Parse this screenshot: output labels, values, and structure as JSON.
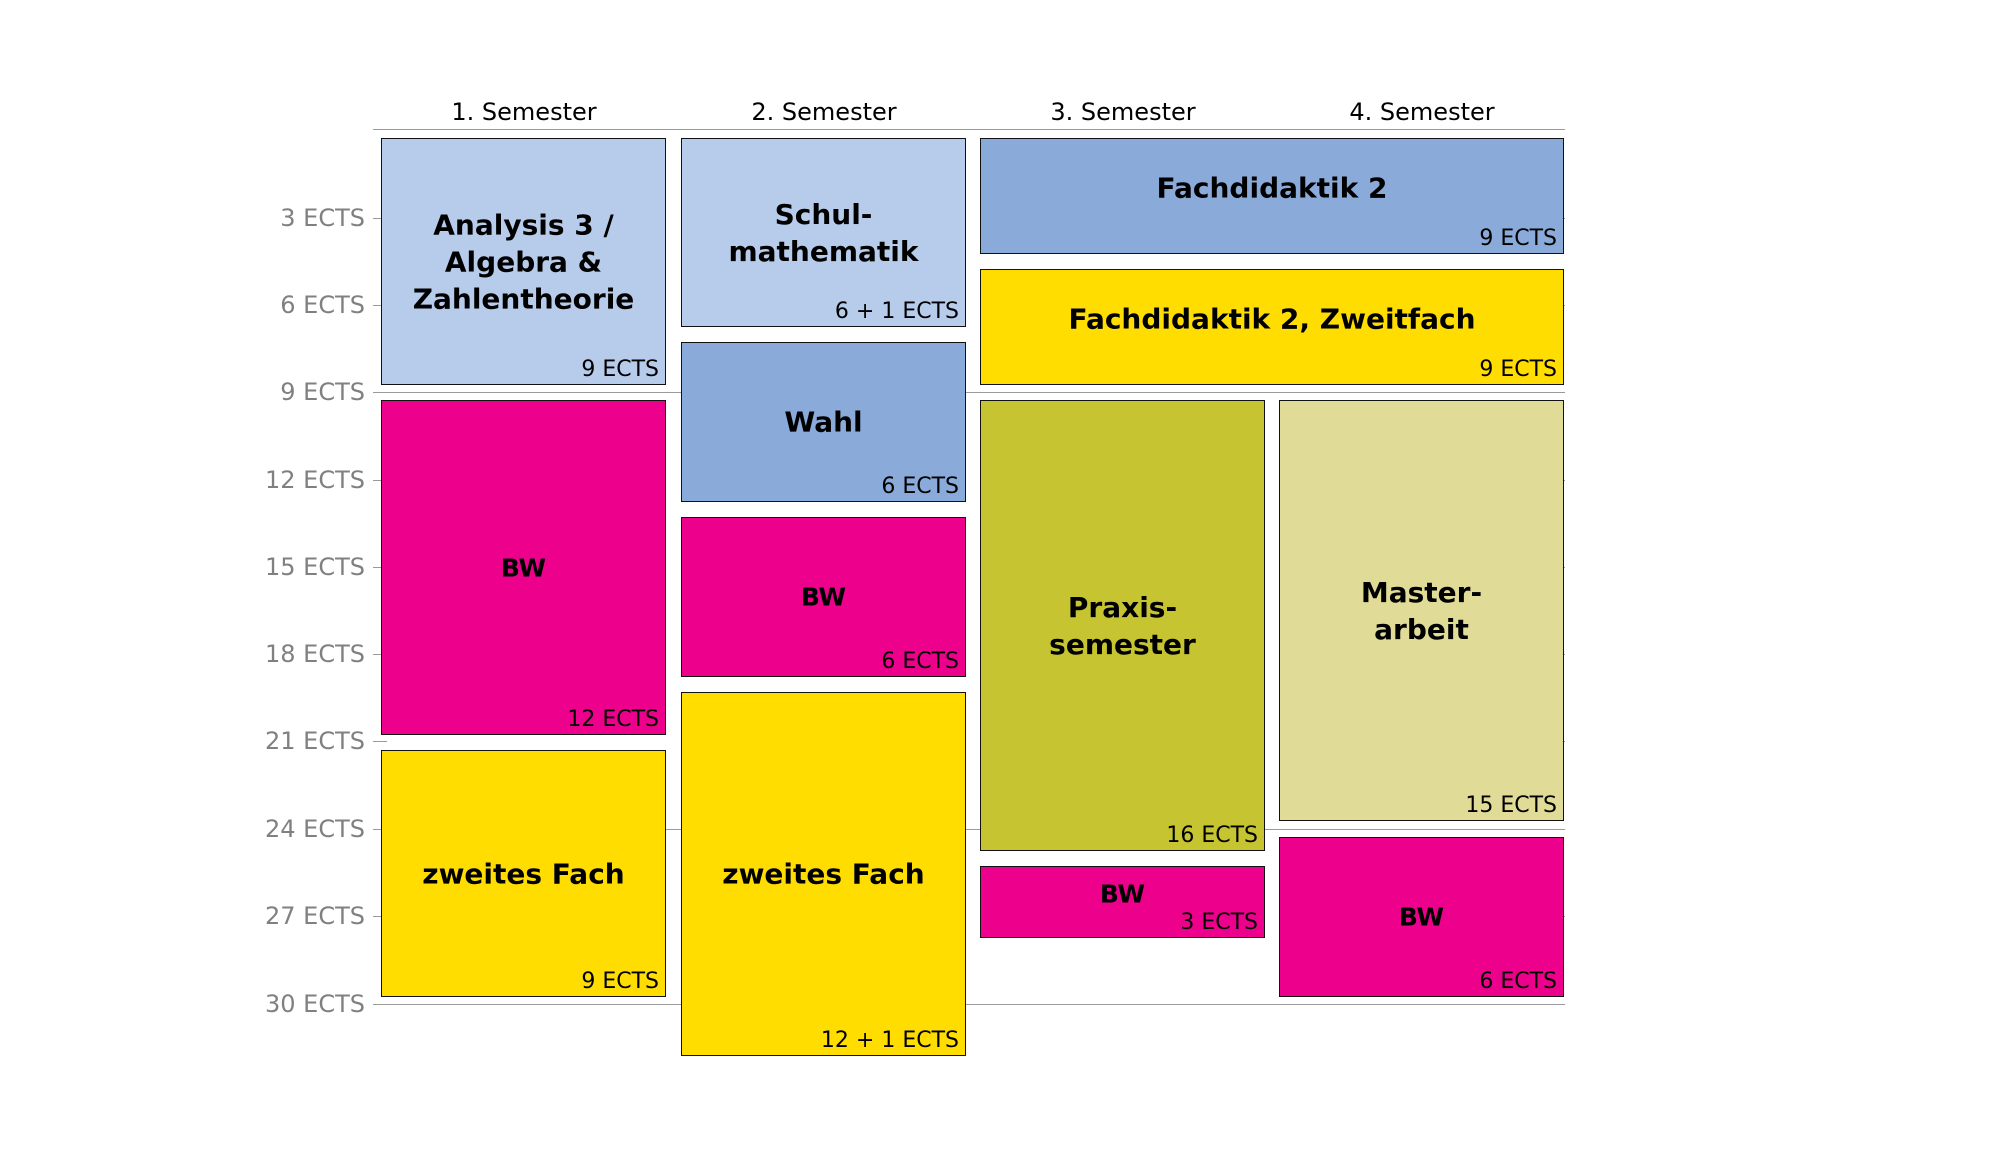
{
  "semesters": [
    "1. Semester",
    "2. Semester",
    "3. Semester",
    "4. Semester"
  ],
  "axis": {
    "labels": [
      "3 ECTS",
      "6 ECTS",
      "9 ECTS",
      "12 ECTS",
      "15 ECTS",
      "18 ECTS",
      "21 ECTS",
      "24 ECTS",
      "27 ECTS",
      "30 ECTS"
    ]
  },
  "colors": {
    "light_blue": "#b7cceb",
    "mid_blue": "#8aaad9",
    "magenta": "#ec008c",
    "yellow": "#ffdd00",
    "olive": "#c6c431",
    "khaki": "#e0db96"
  },
  "modules": [
    {
      "title": "Analysis 3 /\nAlgebra &\nZahlentheorie",
      "ects": "9 ECTS",
      "semester": 1,
      "color": "#b7cceb"
    },
    {
      "title": "BW",
      "ects": "12 ECTS",
      "semester": 1,
      "color": "#ec008c"
    },
    {
      "title": "zweites Fach",
      "ects": "9 ECTS",
      "semester": 1,
      "color": "#ffdd00"
    },
    {
      "title": "Schul-\nmathematik",
      "ects": "6 + 1 ECTS",
      "semester": 2,
      "color": "#b7cceb"
    },
    {
      "title": "Wahl",
      "ects": "6 ECTS",
      "semester": 2,
      "color": "#8aaad9"
    },
    {
      "title": "BW",
      "ects": "6 ECTS",
      "semester": 2,
      "color": "#ec008c"
    },
    {
      "title": "zweites Fach",
      "ects": "12 + 1 ECTS",
      "semester": 2,
      "color": "#ffdd00"
    },
    {
      "title": "Fachdidaktik 2",
      "ects": "9 ECTS",
      "semester": "3-4",
      "color": "#8aaad9"
    },
    {
      "title": "Fachdidaktik 2, Zweitfach",
      "ects": "9 ECTS",
      "semester": "3-4",
      "color": "#ffdd00"
    },
    {
      "title": "Praxis-\nsemester",
      "ects": "16 ECTS",
      "semester": 3,
      "color": "#c6c431"
    },
    {
      "title": "BW",
      "ects": "3 ECTS",
      "semester": 3,
      "color": "#ec008c"
    },
    {
      "title": "Master-\narbeit",
      "ects": "15 ECTS",
      "semester": 4,
      "color": "#e0db96"
    },
    {
      "title": "BW",
      "ects": "6 ECTS",
      "semester": 4,
      "color": "#ec008c"
    }
  ]
}
